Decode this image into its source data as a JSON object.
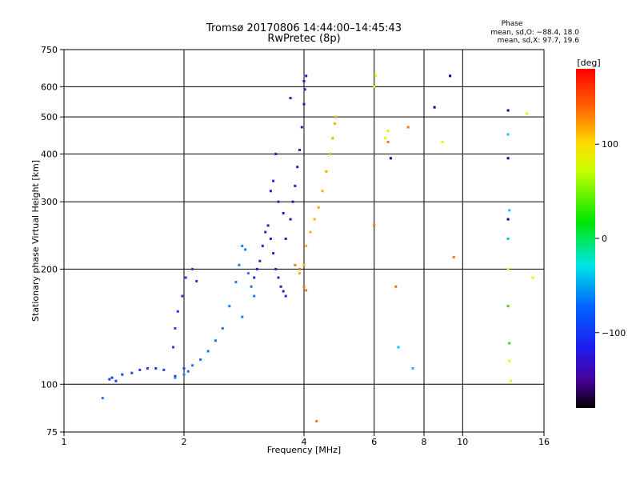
{
  "chart_data": {
    "type": "scatter",
    "title": "Tromsø 20170806 14:44:00–14:45:43",
    "subtitle": "RwPretec (8p)",
    "xlabel": "Frequency [MHz]",
    "ylabel": "Stationary phase Virtual Height [km]",
    "x_scale": "log",
    "y_scale": "log",
    "xlim": [
      1,
      16
    ],
    "ylim": [
      75,
      750
    ],
    "x_ticks": [
      1,
      2,
      4,
      6,
      8,
      10,
      16
    ],
    "x_tick_labels": [
      "1",
      "2",
      "4",
      "6",
      "8",
      "10",
      "16"
    ],
    "y_ticks": [
      75,
      100,
      200,
      300,
      400,
      500,
      600,
      750
    ],
    "y_tick_labels": [
      "75",
      "100",
      "200",
      "300",
      "400",
      "500",
      "600",
      "750"
    ],
    "grid": true,
    "stats": {
      "heading": "Phase",
      "line_o": "mean, sd,O: −88.4, 18.0",
      "line_x": "mean, sd,X:  97.7, 19.6"
    },
    "colorbar": {
      "title": "[deg]",
      "range": [
        -180,
        180
      ],
      "ticks": [
        100,
        0,
        -100
      ],
      "tick_labels": [
        "100",
        "0",
        "−100"
      ]
    },
    "series": [
      {
        "phase_deg": -95,
        "color": "#1e3cf0",
        "points": [
          [
            1.3,
            103
          ],
          [
            1.32,
            104
          ],
          [
            1.35,
            102
          ],
          [
            1.4,
            106
          ],
          [
            1.48,
            107
          ],
          [
            1.55,
            109
          ],
          [
            1.62,
            110
          ],
          [
            1.7,
            110
          ],
          [
            1.78,
            109
          ],
          [
            1.9,
            105
          ],
          [
            2.0,
            110
          ],
          [
            1.88,
            125
          ],
          [
            1.9,
            140
          ],
          [
            1.93,
            155
          ],
          [
            1.98,
            170
          ],
          [
            2.02,
            190
          ],
          [
            2.1,
            200
          ],
          [
            2.15,
            186
          ]
        ]
      },
      {
        "phase_deg": -75,
        "color": "#1e78f0",
        "points": [
          [
            1.25,
            92
          ],
          [
            1.9,
            104
          ],
          [
            2.0,
            106
          ],
          [
            2.05,
            108
          ],
          [
            2.1,
            112
          ],
          [
            2.2,
            116
          ],
          [
            2.3,
            122
          ],
          [
            2.4,
            130
          ],
          [
            2.5,
            140
          ],
          [
            2.6,
            160
          ],
          [
            2.7,
            185
          ],
          [
            2.75,
            205
          ],
          [
            2.8,
            230
          ],
          [
            2.85,
            225
          ],
          [
            2.9,
            195
          ],
          [
            2.95,
            180
          ],
          [
            3.0,
            170
          ],
          [
            2.8,
            150
          ]
        ]
      },
      {
        "phase_deg": -110,
        "color": "#2a1ed2",
        "points": [
          [
            3.0,
            190
          ],
          [
            3.05,
            200
          ],
          [
            3.1,
            210
          ],
          [
            3.15,
            230
          ],
          [
            3.2,
            250
          ],
          [
            3.25,
            260
          ],
          [
            3.3,
            240
          ],
          [
            3.35,
            220
          ],
          [
            3.4,
            200
          ],
          [
            3.45,
            190
          ],
          [
            3.5,
            180
          ],
          [
            3.55,
            175
          ],
          [
            3.6,
            170
          ],
          [
            3.3,
            320
          ],
          [
            3.35,
            340
          ],
          [
            3.45,
            300
          ],
          [
            3.55,
            280
          ],
          [
            3.4,
            400
          ]
        ]
      },
      {
        "phase_deg": -120,
        "color": "#1e1ebe",
        "points": [
          [
            3.6,
            240
          ],
          [
            3.7,
            270
          ],
          [
            3.75,
            300
          ],
          [
            3.8,
            330
          ],
          [
            3.85,
            370
          ],
          [
            3.9,
            410
          ],
          [
            3.95,
            470
          ],
          [
            4.0,
            540
          ],
          [
            4.02,
            590
          ],
          [
            4.05,
            640
          ],
          [
            3.7,
            560
          ],
          [
            4.0,
            620
          ]
        ]
      },
      {
        "phase_deg": 95,
        "color": "#f0b400",
        "points": [
          [
            3.9,
            195
          ],
          [
            4.0,
            205
          ],
          [
            4.05,
            230
          ],
          [
            4.15,
            250
          ],
          [
            4.25,
            270
          ],
          [
            4.35,
            290
          ],
          [
            4.45,
            320
          ],
          [
            4.55,
            360
          ],
          [
            4.65,
            400
          ],
          [
            4.72,
            440
          ],
          [
            4.78,
            480
          ],
          [
            4.8,
            500
          ]
        ]
      },
      {
        "phase_deg": 120,
        "color": "#f07800",
        "points": [
          [
            3.8,
            205
          ],
          [
            3.9,
            200
          ],
          [
            4.0,
            180
          ],
          [
            4.05,
            176
          ],
          [
            4.3,
            80
          ],
          [
            6.0,
            260
          ],
          [
            6.5,
            430
          ],
          [
            6.8,
            180
          ],
          [
            7.3,
            470
          ],
          [
            9.5,
            215
          ]
        ]
      },
      {
        "phase_deg": 80,
        "color": "#f0f000",
        "points": [
          [
            6.0,
            600
          ],
          [
            6.05,
            640
          ],
          [
            6.4,
            440
          ],
          [
            6.5,
            460
          ],
          [
            8.9,
            430
          ],
          [
            13.0,
            200
          ],
          [
            13.1,
            115
          ],
          [
            13.2,
            102
          ],
          [
            14.5,
            510
          ],
          [
            15.0,
            190
          ]
        ]
      },
      {
        "phase_deg": -30,
        "color": "#00c8f0",
        "points": [
          [
            6.9,
            125
          ],
          [
            7.5,
            110
          ],
          [
            13.0,
            450
          ],
          [
            13.0,
            240
          ],
          [
            13.1,
            285
          ]
        ]
      },
      {
        "phase_deg": 30,
        "color": "#50d200",
        "points": [
          [
            13.0,
            160
          ],
          [
            13.1,
            128
          ]
        ]
      },
      {
        "phase_deg": -125,
        "color": "#0000a0",
        "points": [
          [
            6.6,
            390
          ],
          [
            8.5,
            530
          ],
          [
            9.3,
            640
          ],
          [
            13.0,
            520
          ],
          [
            13.0,
            390
          ],
          [
            13.0,
            270
          ]
        ]
      }
    ]
  }
}
